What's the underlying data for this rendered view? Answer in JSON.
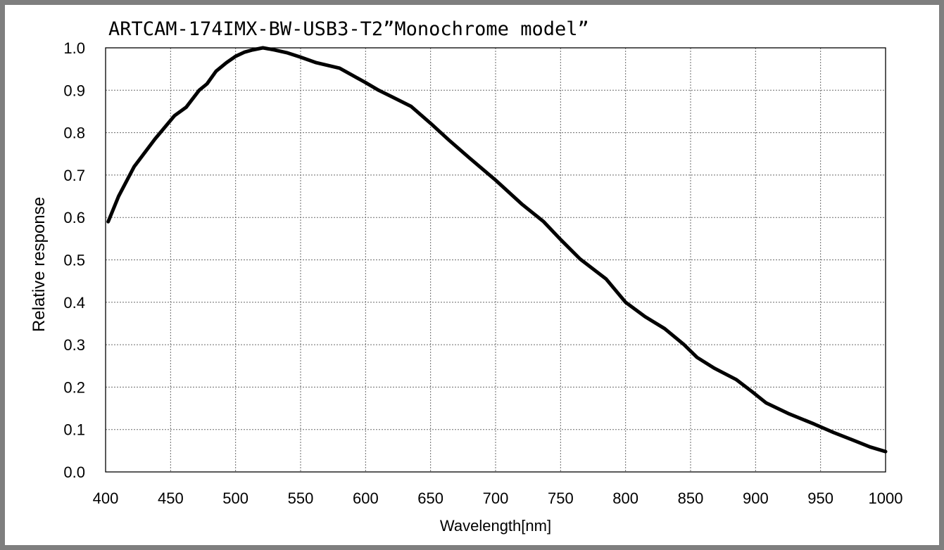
{
  "chart_data": {
    "type": "line",
    "title": "ARTCAM-174IMX-BW-USB3-T2”Monochrome model”",
    "xlabel": "Wavelength[nm]",
    "ylabel": "Relative response",
    "xlim": [
      400,
      1000
    ],
    "ylim": [
      0.0,
      1.0
    ],
    "x_ticks": [
      "400",
      "450",
      "500",
      "550",
      "600",
      "650",
      "700",
      "750",
      "800",
      "850",
      "900",
      "950",
      "1000"
    ],
    "y_ticks": [
      "0.0",
      "0.1",
      "0.2",
      "0.3",
      "0.4",
      "0.5",
      "0.6",
      "0.7",
      "0.8",
      "0.9",
      "1.0"
    ],
    "grid": true,
    "series": [
      {
        "x": [
          402,
          410,
          422,
          438,
          453,
          462,
          472,
          478,
          485,
          493,
          500,
          507,
          513,
          521,
          530,
          540,
          550,
          562,
          580,
          590,
          600,
          610,
          620,
          635,
          650,
          665,
          680,
          700,
          720,
          737,
          750,
          765,
          785,
          800,
          815,
          830,
          845,
          855,
          868,
          885,
          897,
          908,
          925,
          945,
          960,
          975,
          988,
          1000
        ],
        "y": [
          0.59,
          0.65,
          0.72,
          0.785,
          0.84,
          0.86,
          0.9,
          0.915,
          0.945,
          0.965,
          0.98,
          0.99,
          0.995,
          1.0,
          0.995,
          0.988,
          0.978,
          0.965,
          0.952,
          0.935,
          0.918,
          0.9,
          0.885,
          0.862,
          0.822,
          0.78,
          0.74,
          0.688,
          0.632,
          0.59,
          0.548,
          0.502,
          0.455,
          0.4,
          0.366,
          0.338,
          0.3,
          0.27,
          0.245,
          0.218,
          0.19,
          0.163,
          0.138,
          0.113,
          0.093,
          0.075,
          0.059,
          0.048
        ]
      }
    ]
  }
}
